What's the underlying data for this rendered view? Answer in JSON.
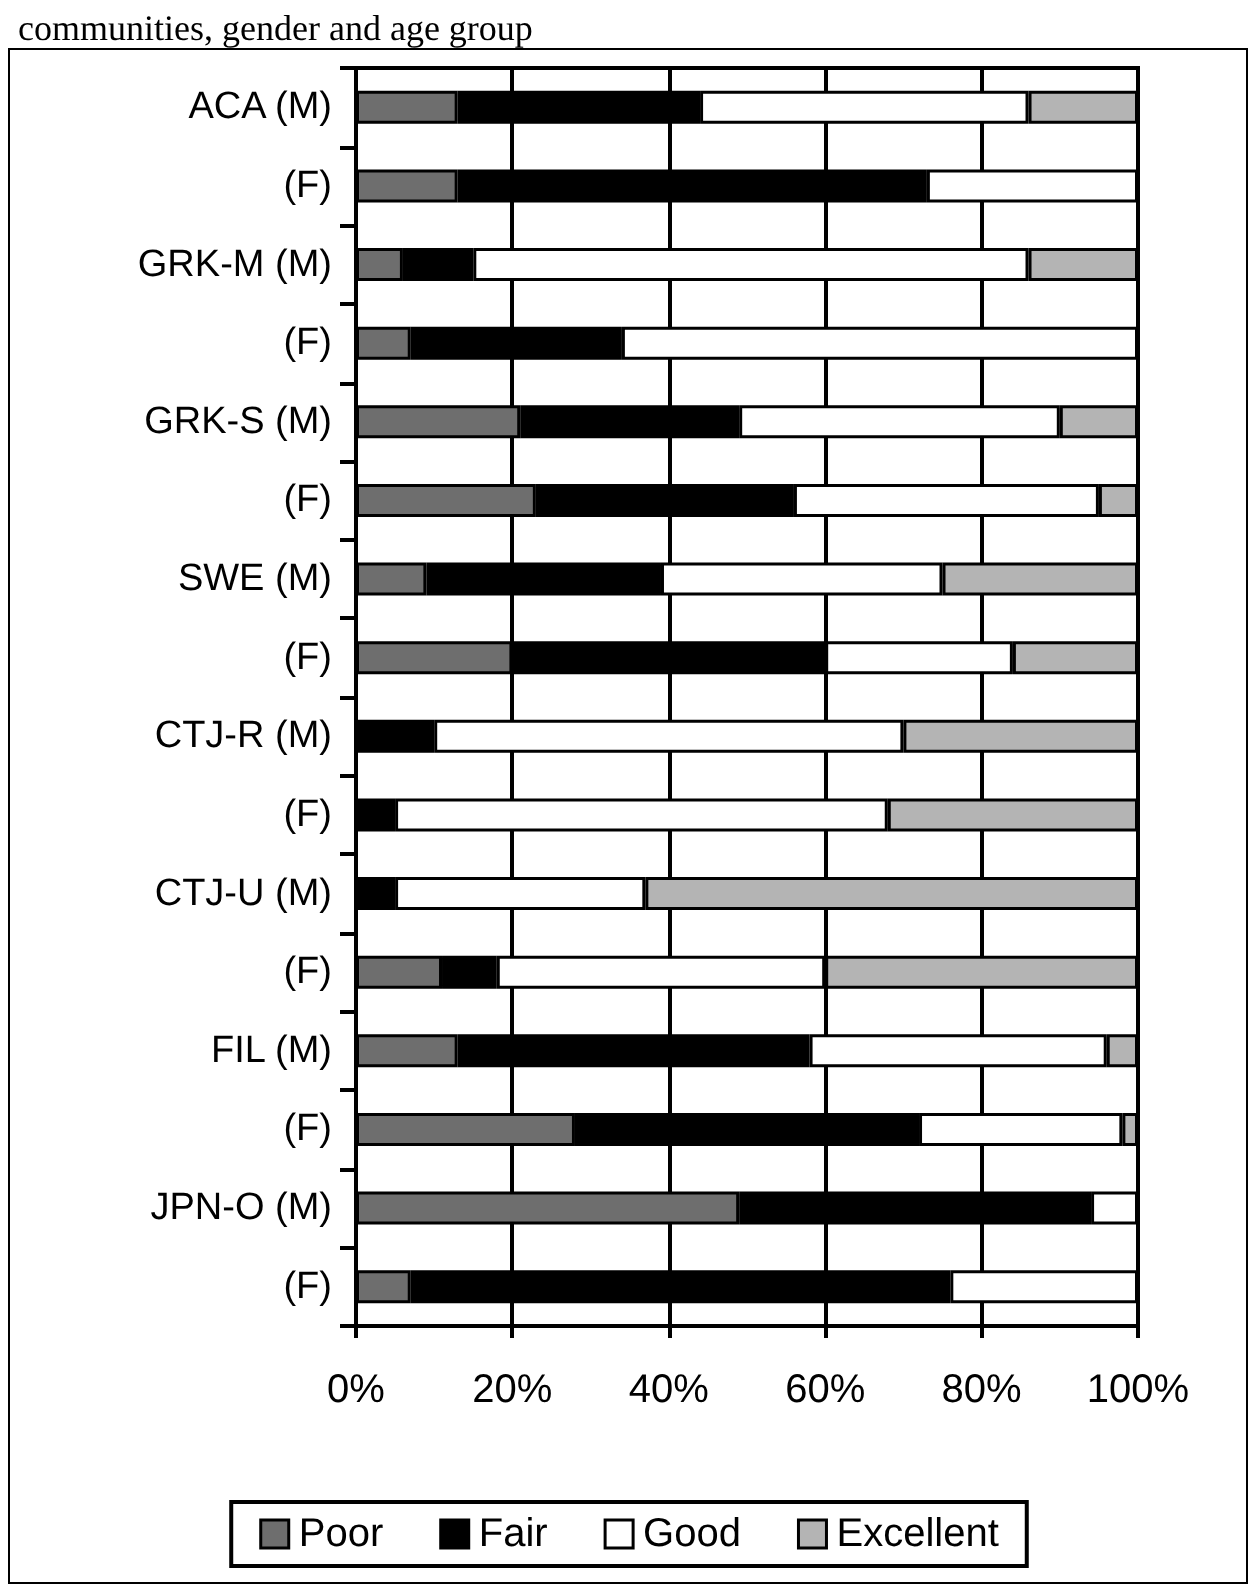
{
  "chart_data": {
    "type": "bar",
    "orientation": "horizontal",
    "stacked": true,
    "title": "communities, gender and age group",
    "categories": [
      "ACA (M)",
      "(F)",
      "GRK-M (M)",
      "(F)",
      "GRK-S (M)",
      "(F)",
      "SWE (M)",
      "(F)",
      "CTJ-R (M)",
      "(F)",
      "CTJ-U (M)",
      "(F)",
      "FIL (M)",
      "(F)",
      "JPN-O (M)",
      "(F)"
    ],
    "series": [
      {
        "name": "Poor",
        "color": "#6e6e6e",
        "values": [
          13,
          13,
          6,
          7,
          21,
          23,
          9,
          20,
          0,
          0,
          0,
          11,
          13,
          28,
          49,
          7
        ]
      },
      {
        "name": "Fair",
        "color": "#000000",
        "values": [
          31,
          60,
          9,
          27,
          28,
          33,
          30,
          40,
          10,
          5,
          5,
          7,
          45,
          44,
          45,
          69
        ]
      },
      {
        "name": "Good",
        "color": "#ffffff",
        "values": [
          42,
          27,
          71,
          66,
          41,
          39,
          36,
          24,
          60,
          63,
          32,
          42,
          38,
          26,
          6,
          24
        ]
      },
      {
        "name": "Excellent",
        "color": "#b4b4b4",
        "values": [
          14,
          0,
          14,
          0,
          10,
          5,
          25,
          16,
          30,
          32,
          63,
          40,
          4,
          2,
          0,
          0
        ]
      }
    ],
    "xlim": [
      0,
      100
    ],
    "xticks": [
      {
        "value": 0,
        "label": "0%"
      },
      {
        "value": 20,
        "label": "20%"
      },
      {
        "value": 40,
        "label": "40%"
      },
      {
        "value": 60,
        "label": "60%"
      },
      {
        "value": 80,
        "label": "80%"
      },
      {
        "value": 100,
        "label": "100%"
      }
    ],
    "grid": "x",
    "legend": "bottom"
  }
}
